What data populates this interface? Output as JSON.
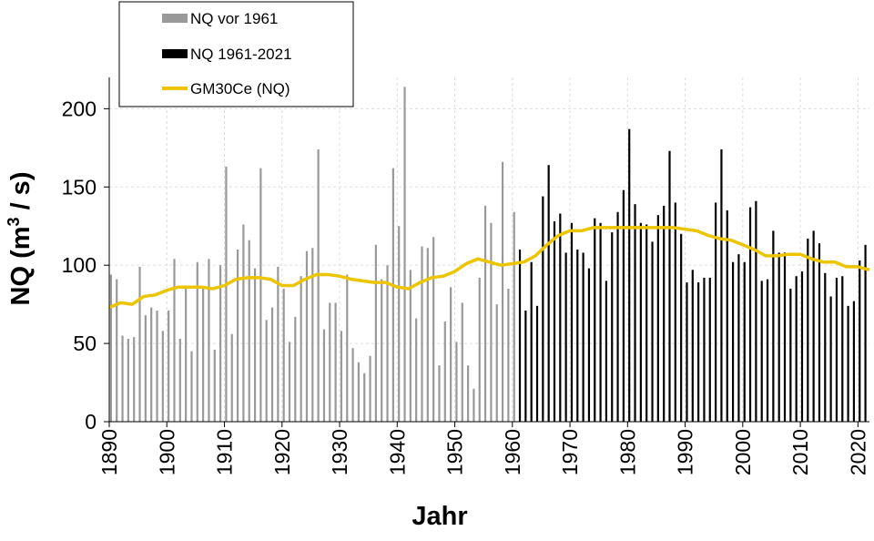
{
  "chart_data": {
    "type": "bar",
    "xlabel": "Jahr",
    "ylabel_main": "NQ (m",
    "ylabel_sup": "3",
    "ylabel_end": " / s)",
    "xlim": [
      1890,
      2022
    ],
    "ylim": [
      0,
      220
    ],
    "x_ticks": [
      1890,
      1900,
      1910,
      1920,
      1930,
      1940,
      1950,
      1960,
      1970,
      1980,
      1990,
      2000,
      2010,
      2020
    ],
    "y_ticks": [
      0,
      50,
      100,
      150,
      200
    ],
    "grid": true,
    "legend_position": "top-left",
    "legend": [
      {
        "label": "NQ vor 1961",
        "color": "#999999",
        "kind": "bar"
      },
      {
        "label": "NQ 1961-2021",
        "color": "#000000",
        "kind": "bar"
      },
      {
        "label": "GM30Ce (NQ)",
        "color": "#ecc400",
        "kind": "line"
      }
    ],
    "series": [
      {
        "name": "NQ vor 1961",
        "color": "#999999",
        "start_year": 1890,
        "values": [
          94,
          91,
          55,
          53,
          54,
          99,
          68,
          73,
          71,
          58,
          71,
          104,
          53,
          86,
          45,
          102,
          86,
          104,
          46,
          100,
          163,
          56,
          110,
          126,
          116,
          98,
          162,
          65,
          73,
          99,
          85,
          51,
          67,
          93,
          109,
          111,
          174,
          59,
          76,
          76,
          58,
          94,
          47,
          38,
          31,
          42,
          113,
          91,
          100,
          162,
          125,
          214,
          97,
          66,
          112,
          111,
          118,
          36,
          64,
          86,
          51,
          76,
          36,
          21,
          92,
          138,
          127,
          75,
          166,
          85,
          134
        ]
      },
      {
        "name": "NQ 1961-2021",
        "color": "#000000",
        "start_year": 1961,
        "values": [
          110,
          71,
          102,
          74,
          144,
          164,
          128,
          133,
          108,
          127,
          110,
          108,
          98,
          130,
          127,
          90,
          121,
          134,
          148,
          187,
          139,
          127,
          126,
          115,
          132,
          138,
          173,
          140,
          120,
          89,
          97,
          89,
          92,
          92,
          140,
          174,
          135,
          102,
          107,
          102,
          137,
          141,
          90,
          91,
          122,
          108,
          108,
          85,
          93,
          96,
          117,
          122,
          114,
          95,
          80,
          92,
          93,
          74,
          77,
          103,
          113
        ]
      },
      {
        "name": "GM30Ce (NQ)",
        "color": "#ecc400",
        "type": "line",
        "points": [
          [
            1890,
            73
          ],
          [
            1892,
            76
          ],
          [
            1894,
            75
          ],
          [
            1896,
            80
          ],
          [
            1898,
            81
          ],
          [
            1900,
            84
          ],
          [
            1902,
            86
          ],
          [
            1904,
            86
          ],
          [
            1906,
            86
          ],
          [
            1908,
            85
          ],
          [
            1910,
            87
          ],
          [
            1912,
            91
          ],
          [
            1914,
            92
          ],
          [
            1916,
            92
          ],
          [
            1918,
            91
          ],
          [
            1920,
            87
          ],
          [
            1922,
            87
          ],
          [
            1924,
            91
          ],
          [
            1926,
            94
          ],
          [
            1928,
            94
          ],
          [
            1930,
            93
          ],
          [
            1932,
            91
          ],
          [
            1934,
            90
          ],
          [
            1936,
            89
          ],
          [
            1938,
            89
          ],
          [
            1940,
            86
          ],
          [
            1942,
            85
          ],
          [
            1944,
            89
          ],
          [
            1946,
            92
          ],
          [
            1948,
            93
          ],
          [
            1950,
            96
          ],
          [
            1952,
            101
          ],
          [
            1954,
            104
          ],
          [
            1956,
            102
          ],
          [
            1958,
            100
          ],
          [
            1960,
            101
          ],
          [
            1962,
            102
          ],
          [
            1964,
            106
          ],
          [
            1966,
            113
          ],
          [
            1968,
            119
          ],
          [
            1970,
            122
          ],
          [
            1972,
            122
          ],
          [
            1974,
            124
          ],
          [
            1976,
            124
          ],
          [
            1978,
            124
          ],
          [
            1980,
            124
          ],
          [
            1982,
            124
          ],
          [
            1984,
            124
          ],
          [
            1986,
            124
          ],
          [
            1988,
            124
          ],
          [
            1990,
            123
          ],
          [
            1992,
            122
          ],
          [
            1994,
            119
          ],
          [
            1996,
            117
          ],
          [
            1998,
            116
          ],
          [
            2000,
            113
          ],
          [
            2002,
            110
          ],
          [
            2004,
            106
          ],
          [
            2006,
            106
          ],
          [
            2008,
            107
          ],
          [
            2010,
            107
          ],
          [
            2012,
            104
          ],
          [
            2014,
            102
          ],
          [
            2016,
            102
          ],
          [
            2018,
            99
          ],
          [
            2020,
            99
          ],
          [
            2022,
            97
          ]
        ]
      }
    ]
  }
}
